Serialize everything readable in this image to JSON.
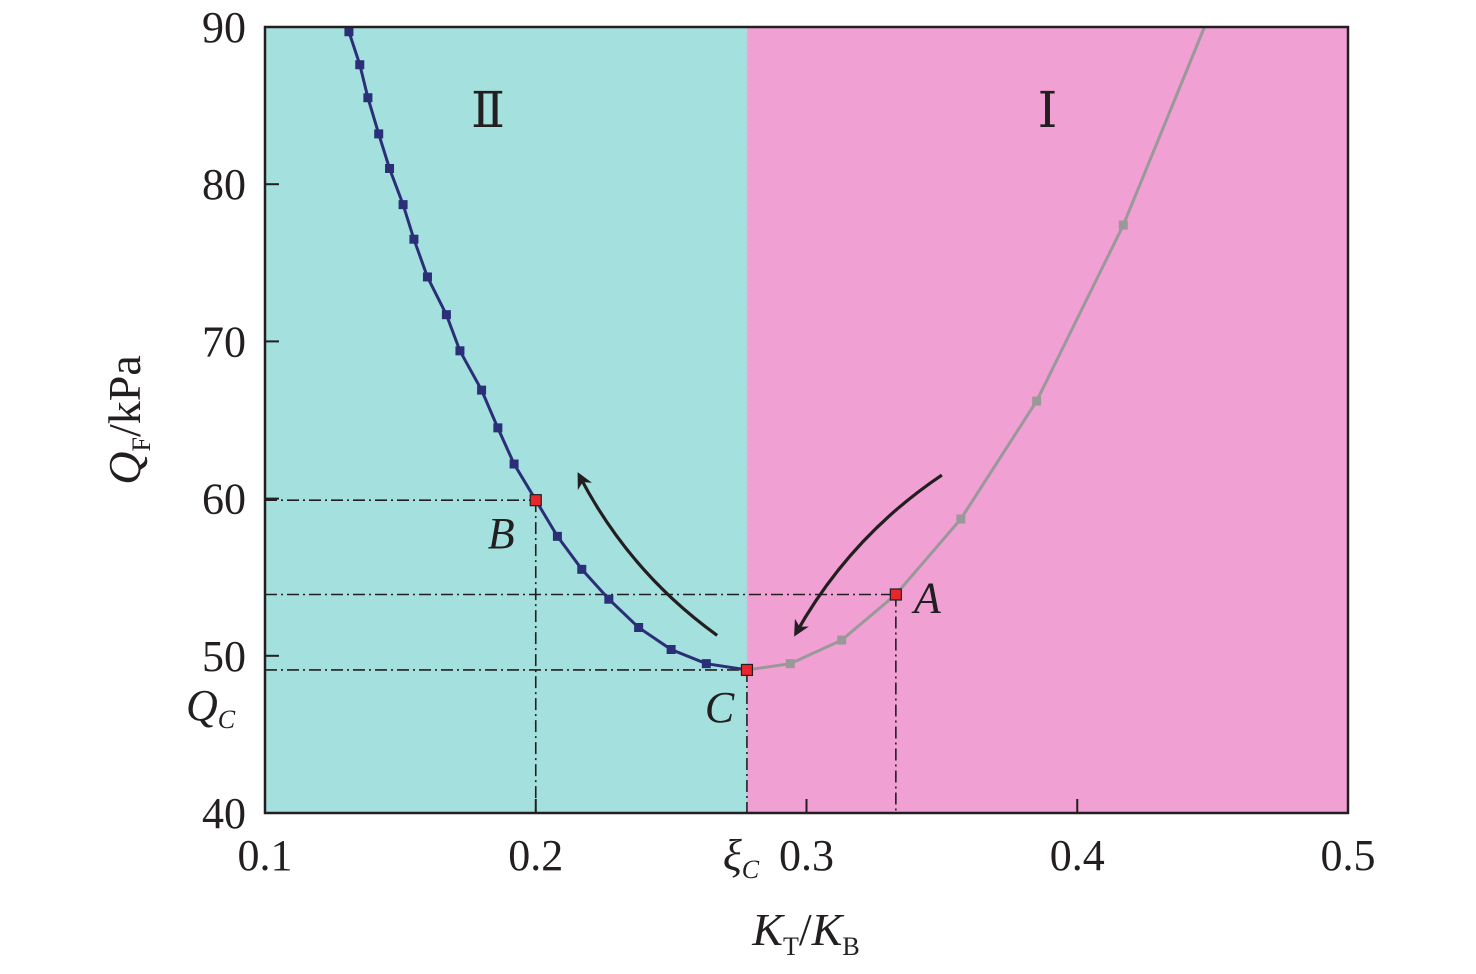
{
  "chart_data": {
    "type": "line",
    "xlabel": {
      "main": "K",
      "sub": "T",
      "sep": "/",
      "main2": "K",
      "sub2": "B"
    },
    "ylabel": {
      "main": "Q",
      "sub": "F",
      "rest": "/kPa"
    },
    "xlim": [
      0.1,
      0.5
    ],
    "ylim": [
      40,
      90
    ],
    "x_ticks": [
      "0.1",
      "0.2",
      "0.3",
      "0.4",
      "0.5"
    ],
    "x_tick_values": [
      0.1,
      0.2,
      0.3,
      0.4,
      0.5
    ],
    "y_ticks": [
      "40",
      "50",
      "60",
      "70",
      "80",
      "90"
    ],
    "y_tick_values": [
      40,
      50,
      60,
      70,
      80,
      90
    ],
    "xi_c": {
      "label": "ξ",
      "sub": "C",
      "value": 0.278
    },
    "q_c": {
      "label": "Q",
      "sub": "C",
      "value": 49.1
    },
    "regions": [
      {
        "name": "Ⅱ",
        "x_range": [
          0.1,
          0.278
        ],
        "color": "#a4e0dd"
      },
      {
        "name": "Ⅰ",
        "x_range": [
          0.278,
          0.5
        ],
        "color": "#f0a0d2"
      }
    ],
    "series": [
      {
        "color": "#2a2f78",
        "x": [
          0.131,
          0.135,
          0.138,
          0.142,
          0.146,
          0.151,
          0.155,
          0.16,
          0.167,
          0.172,
          0.18,
          0.186,
          0.192,
          0.2,
          0.208,
          0.217,
          0.227,
          0.238,
          0.25,
          0.263,
          0.278
        ],
        "y": [
          89.7,
          87.6,
          85.5,
          83.2,
          81.0,
          78.7,
          76.5,
          74.1,
          71.7,
          69.4,
          66.9,
          64.5,
          62.2,
          59.9,
          57.6,
          55.5,
          53.6,
          51.8,
          50.4,
          49.5,
          49.1
        ]
      },
      {
        "color": "#999999",
        "x": [
          0.278,
          0.294,
          0.313,
          0.333,
          0.357,
          0.385,
          0.417,
          0.447
        ],
        "y": [
          49.1,
          49.5,
          51.0,
          53.9,
          58.7,
          66.2,
          77.4,
          90.0
        ],
        "markers": [
          1,
          1,
          1,
          1,
          1,
          1,
          1,
          0
        ]
      }
    ],
    "highlighted_points": [
      {
        "label": "A",
        "x": 0.333,
        "y": 53.9
      },
      {
        "label": "B",
        "x": 0.2,
        "y": 59.9
      },
      {
        "label": "C",
        "x": 0.278,
        "y": 49.1
      }
    ],
    "arrows": [
      {
        "from": [
          0.35,
          61.5
        ],
        "to": [
          0.296,
          51.4
        ]
      },
      {
        "from": [
          0.267,
          51.3
        ],
        "to": [
          0.216,
          61.5
        ]
      }
    ]
  }
}
